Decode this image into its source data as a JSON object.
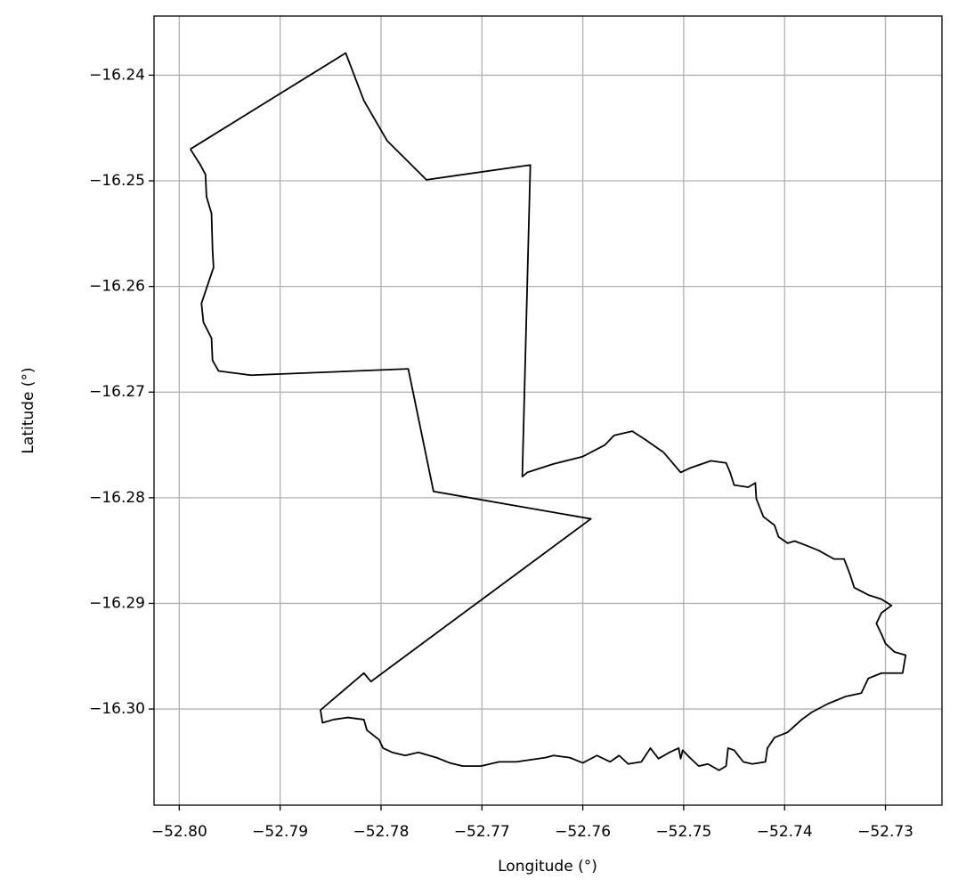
{
  "chart_data": {
    "type": "line",
    "color": "#000000",
    "grid": true,
    "xlabel": "Longitude (°)",
    "ylabel": "Latitude (°)",
    "xlim": [
      -52.8025,
      -52.7244
    ],
    "ylim": [
      -16.3091,
      -16.2344
    ],
    "xticks": [
      {
        "value": -52.8,
        "label": "−52.80"
      },
      {
        "value": -52.79,
        "label": "−52.79"
      },
      {
        "value": -52.78,
        "label": "−52.78"
      },
      {
        "value": -52.77,
        "label": "−52.77"
      },
      {
        "value": -52.76,
        "label": "−52.76"
      },
      {
        "value": -52.75,
        "label": "−52.75"
      },
      {
        "value": -52.74,
        "label": "−52.74"
      },
      {
        "value": -52.73,
        "label": "−52.73"
      }
    ],
    "yticks": [
      {
        "value": -16.24,
        "label": "−16.24"
      },
      {
        "value": -16.25,
        "label": "−16.25"
      },
      {
        "value": -16.26,
        "label": "−16.26"
      },
      {
        "value": -16.27,
        "label": "−16.27"
      },
      {
        "value": -16.28,
        "label": "−16.28"
      },
      {
        "value": -16.29,
        "label": "−16.29"
      },
      {
        "value": -16.3,
        "label": "−16.30"
      }
    ],
    "x": [
      -52.7989,
      -52.7835,
      -52.7817,
      -52.7794,
      -52.7755,
      -52.7652,
      -52.766,
      -52.7655,
      -52.7629,
      -52.76,
      -52.7578,
      -52.7569,
      -52.7551,
      -52.7538,
      -52.752,
      -52.7503,
      -52.7494,
      -52.7473,
      -52.7458,
      -52.7454,
      -52.745,
      -52.7436,
      -52.7429,
      -52.7428,
      -52.7421,
      -52.741,
      -52.7406,
      -52.7397,
      -52.739,
      -52.7379,
      -52.7366,
      -52.7351,
      -52.7341,
      -52.7335,
      -52.7331,
      -52.7317,
      -52.7304,
      -52.7294,
      -52.7304,
      -52.7309,
      -52.7304,
      -52.73,
      -52.7291,
      -52.728,
      -52.7283,
      -52.7304,
      -52.7317,
      -52.7324,
      -52.7339,
      -52.7357,
      -52.7373,
      -52.7383,
      -52.7397,
      -52.741,
      -52.7417,
      -52.7419,
      -52.7432,
      -52.7441,
      -52.745,
      -52.7456,
      -52.7458,
      -52.7465,
      -52.7476,
      -52.7485,
      -52.7494,
      -52.7501,
      -52.7503,
      -52.7505,
      -52.7514,
      -52.7525,
      -52.7533,
      -52.7542,
      -52.7555,
      -52.7564,
      -52.7573,
      -52.7586,
      -52.76,
      -52.7613,
      -52.7629,
      -52.7637,
      -52.7666,
      -52.7683,
      -52.7701,
      -52.7719,
      -52.7732,
      -52.7745,
      -52.7763,
      -52.7776,
      -52.7789,
      -52.7798,
      -52.7802,
      -52.7814,
      -52.7817,
      -52.7833,
      -52.7847,
      -52.7858,
      -52.786,
      -52.7817,
      -52.781,
      -52.7592,
      -52.7748,
      -52.7773,
      -52.7929,
      -52.7961,
      -52.7967,
      -52.7968,
      -52.7976,
      -52.7978,
      -52.7972,
      -52.7966,
      -52.7967,
      -52.7968,
      -52.7973,
      -52.7974,
      -52.7979,
      -52.7989
    ],
    "values": [
      -16.247,
      -16.2379,
      -16.2424,
      -16.2462,
      -16.2499,
      -16.2485,
      -16.278,
      -16.2776,
      -16.2768,
      -16.2761,
      -16.275,
      -16.2741,
      -16.2737,
      -16.2745,
      -16.2757,
      -16.2776,
      -16.2772,
      -16.2765,
      -16.2767,
      -16.2776,
      -16.2788,
      -16.279,
      -16.2786,
      -16.2801,
      -16.2818,
      -16.2826,
      -16.2837,
      -16.2843,
      -16.2841,
      -16.2845,
      -16.285,
      -16.2858,
      -16.2858,
      -16.2873,
      -16.2885,
      -16.2892,
      -16.2896,
      -16.2902,
      -16.2909,
      -16.2919,
      -16.2929,
      -16.2938,
      -16.2946,
      -16.2949,
      -16.2966,
      -16.2966,
      -16.2971,
      -16.2985,
      -16.2988,
      -16.2995,
      -16.3003,
      -16.301,
      -16.3022,
      -16.3027,
      -16.3037,
      -16.305,
      -16.3052,
      -16.305,
      -16.3039,
      -16.3037,
      -16.3054,
      -16.3058,
      -16.3052,
      -16.3054,
      -16.3046,
      -16.3039,
      -16.3047,
      -16.3037,
      -16.3041,
      -16.3047,
      -16.3037,
      -16.305,
      -16.3052,
      -16.3044,
      -16.305,
      -16.3044,
      -16.3051,
      -16.3046,
      -16.3044,
      -16.3046,
      -16.305,
      -16.305,
      -16.3054,
      -16.3054,
      -16.3051,
      -16.3046,
      -16.3041,
      -16.3044,
      -16.3041,
      -16.3037,
      -16.3029,
      -16.302,
      -16.301,
      -16.3008,
      -16.301,
      -16.3013,
      -16.3001,
      -16.2966,
      -16.2974,
      -16.282,
      -16.2794,
      -16.2678,
      -16.2684,
      -16.268,
      -16.267,
      -16.2649,
      -16.2634,
      -16.2616,
      -16.2599,
      -16.2582,
      -16.2565,
      -16.2531,
      -16.2515,
      -16.2494,
      -16.2485,
      -16.247
    ]
  }
}
